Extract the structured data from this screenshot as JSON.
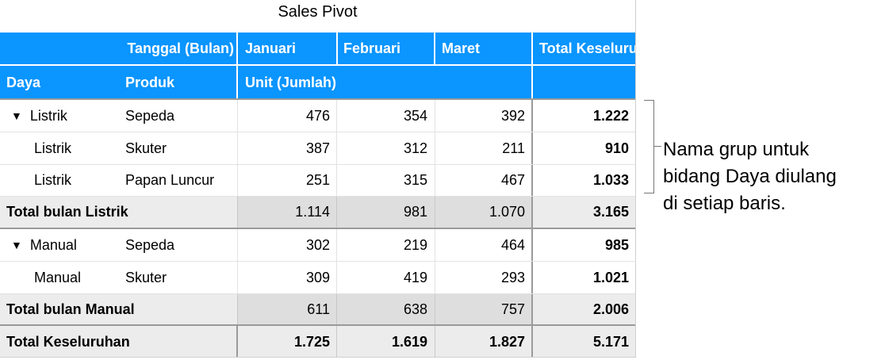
{
  "title": "Sales Pivot",
  "header": {
    "tanggal_label": "Tanggal  (Bulan)",
    "months": [
      "Januari",
      "Februari",
      "Maret"
    ],
    "total_label": "Total Keseluruhan",
    "daya_label": "Daya",
    "produk_label": "Produk",
    "unit_label": "Unit  (Jumlah)"
  },
  "groups": [
    {
      "name": "Listrik",
      "rows": [
        {
          "daya": "Listrik",
          "produk": "Sepeda",
          "values": [
            "476",
            "354",
            "392"
          ],
          "total": "1.222"
        },
        {
          "daya": "Listrik",
          "produk": "Skuter",
          "values": [
            "387",
            "312",
            "211"
          ],
          "total": "910"
        },
        {
          "daya": "Listrik",
          "produk": "Papan Luncur",
          "values": [
            "251",
            "315",
            "467"
          ],
          "total": "1.033"
        }
      ],
      "subtotal": {
        "label": "Total bulan Listrik",
        "values": [
          "1.114",
          "981",
          "1.070"
        ],
        "total": "3.165"
      }
    },
    {
      "name": "Manual",
      "rows": [
        {
          "daya": "Manual",
          "produk": "Sepeda",
          "values": [
            "302",
            "219",
            "464"
          ],
          "total": "985"
        },
        {
          "daya": "Manual",
          "produk": "Skuter",
          "values": [
            "309",
            "419",
            "293"
          ],
          "total": "1.021"
        }
      ],
      "subtotal": {
        "label": "Total bulan Manual",
        "values": [
          "611",
          "638",
          "757"
        ],
        "total": "2.006"
      }
    }
  ],
  "grand_total": {
    "label": "Total Keseluruhan",
    "values": [
      "1.725",
      "1.619",
      "1.827"
    ],
    "total": "5.171"
  },
  "annotation": [
    "Nama grup untuk",
    "bidang Daya diulang",
    "di setiap baris."
  ],
  "colors": {
    "header_blue": "#0a95ff",
    "subtotal_gray": "#ececec"
  },
  "icons": {
    "collapse": "triangle-down-icon"
  }
}
